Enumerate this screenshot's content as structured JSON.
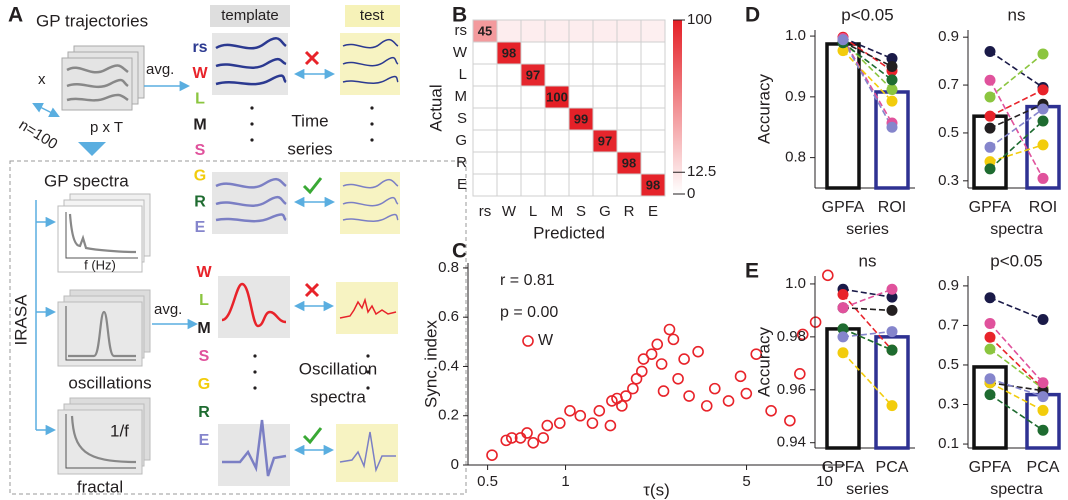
{
  "panel_labels": [
    "A",
    "B",
    "C",
    "D",
    "E"
  ],
  "diagram": {
    "gp_trajectories": "GP trajectories",
    "x": "x",
    "n": "n=100",
    "pxT": "p x T",
    "avg_top": "avg.",
    "template": "template",
    "test": "test",
    "labels_top": [
      "rs",
      "W",
      "L",
      "M",
      "S",
      "G",
      "R",
      "E"
    ],
    "label_colors_top": [
      "#2b3990",
      "#e8232a",
      "#8bc53f",
      "#231f20",
      "#e0529c",
      "#f2cc0c",
      "#1e6b30",
      "#8585cc"
    ],
    "time_series": [
      "Time",
      "series"
    ],
    "gp_spectra": "GP spectra",
    "f_hz": "f (Hz)",
    "irasa": "IRASA",
    "oscillations": "oscillations",
    "one_over_f": "1/f",
    "fractal": "fractal",
    "avg_bottom": "avg.",
    "labels_bottom": [
      "W",
      "L",
      "M",
      "S",
      "G",
      "R",
      "E"
    ],
    "label_colors_bottom": [
      "#e8232a",
      "#8bc53f",
      "#231f20",
      "#e0529c",
      "#f2cc0c",
      "#1e6b30",
      "#8585cc"
    ],
    "oscillation_spectra": [
      "Oscillation",
      "spectra"
    ]
  },
  "chart_data": [
    {
      "type": "heatmap",
      "categories": [
        "rs",
        "W",
        "L",
        "M",
        "S",
        "G",
        "R",
        "E"
      ],
      "matrix": [
        [
          45,
          8,
          8,
          8,
          8,
          8,
          8,
          7
        ],
        [
          0,
          98,
          0,
          0,
          0,
          0,
          0,
          0
        ],
        [
          0,
          0,
          97,
          0,
          0,
          0,
          0,
          0
        ],
        [
          0,
          0,
          0,
          100,
          0,
          0,
          0,
          0
        ],
        [
          0,
          0,
          0,
          0,
          99,
          0,
          0,
          0
        ],
        [
          0,
          0,
          0,
          0,
          0,
          97,
          0,
          0
        ],
        [
          0,
          0,
          0,
          0,
          0,
          0,
          98,
          0
        ],
        [
          0,
          0,
          0,
          0,
          0,
          0,
          0,
          98
        ]
      ],
      "color": "#e41f26",
      "xlabel": "Predicted",
      "ylabel": "Actual",
      "colorbar_lim": [
        0,
        100
      ],
      "colorbar_ticks": [
        0,
        12.5,
        100
      ]
    },
    {
      "type": "scatter",
      "xlabel": "τ(s)",
      "ylabel": "Sync. index",
      "log_x": true,
      "annotations": [
        "r = 0.81",
        "p = 0.00"
      ],
      "xlim": [
        0.42,
        12
      ],
      "ylim": [
        0,
        0.82
      ],
      "xticks": [
        0.5,
        1,
        5,
        10
      ],
      "yticks": [
        0,
        0.2,
        0.4,
        0.6,
        0.8
      ],
      "series": [
        {
          "name": "W",
          "color": "#e8232a",
          "x": [
            0.52,
            0.59,
            0.62,
            0.67,
            0.71,
            0.75,
            0.82,
            0.85,
            0.95,
            1.04,
            1.14,
            1.27,
            1.35,
            1.49,
            1.51,
            1.58,
            1.65,
            1.71,
            1.82,
            1.88,
            1.97,
            2.0,
            2.15,
            2.26,
            2.35,
            2.39,
            2.52,
            2.61,
            2.72,
            2.87,
            3.0,
            3.25,
            3.51,
            3.77,
            4.26,
            4.74,
            4.99,
            5.45,
            6.22,
            7.35,
            8.03,
            8.24,
            9.24,
            10.3
          ],
          "values": [
            0.04,
            0.1,
            0.11,
            0.11,
            0.13,
            0.09,
            0.11,
            0.16,
            0.17,
            0.22,
            0.2,
            0.17,
            0.22,
            0.16,
            0.26,
            0.27,
            0.24,
            0.28,
            0.31,
            0.35,
            0.38,
            0.43,
            0.45,
            0.49,
            0.41,
            0.3,
            0.55,
            0.51,
            0.35,
            0.43,
            0.28,
            0.46,
            0.24,
            0.31,
            0.26,
            0.36,
            0.29,
            0.45,
            0.22,
            0.18,
            0.37,
            0.53,
            0.58,
            0.77
          ]
        }
      ]
    },
    {
      "type": "paired-bar",
      "title": "p<0.05",
      "categories": [
        "GPFA",
        "ROI"
      ],
      "xlabel": "series",
      "ylabel": "Accuracy",
      "values": [
        0.987,
        0.908
      ],
      "bar_colors": [
        "#111111",
        "#2e3192"
      ],
      "ylim": [
        0.75,
        1.01
      ],
      "yticks": [
        0.8,
        0.9,
        {
          "value": 1,
          "label": "1.0"
        }
      ],
      "series": [
        {
          "color": "#1a1a48",
          "values": [
            0.997,
            0.963
          ]
        },
        {
          "color": "#e8232a",
          "values": [
            0.998,
            0.943
          ]
        },
        {
          "color": "#8bc53f",
          "values": [
            0.992,
            0.912
          ]
        },
        {
          "color": "#231f20",
          "values": [
            0.99,
            0.95
          ]
        },
        {
          "color": "#e0529c",
          "values": [
            0.996,
            0.857
          ]
        },
        {
          "color": "#f2cc0c",
          "values": [
            0.976,
            0.893
          ]
        },
        {
          "color": "#1e6b30",
          "values": [
            0.989,
            0.928
          ]
        },
        {
          "color": "#8585cc",
          "values": [
            0.994,
            0.85
          ]
        }
      ]
    },
    {
      "type": "paired-bar",
      "title": "ns",
      "categories": [
        "GPFA",
        "ROI"
      ],
      "xlabel": "spectra",
      "values": [
        0.57,
        0.61
      ],
      "bar_colors": [
        "#111111",
        "#2e3192"
      ],
      "ylim": [
        0.27,
        0.93
      ],
      "yticks": [
        0.3,
        0.5,
        0.7,
        0.9
      ],
      "series": [
        {
          "color": "#1a1a48",
          "values": [
            0.84,
            0.69
          ]
        },
        {
          "color": "#e8232a",
          "values": [
            0.57,
            0.68
          ]
        },
        {
          "color": "#8bc53f",
          "values": [
            0.65,
            0.83
          ]
        },
        {
          "color": "#231f20",
          "values": [
            0.52,
            0.62
          ]
        },
        {
          "color": "#e0529c",
          "values": [
            0.72,
            0.31
          ]
        },
        {
          "color": "#f2cc0c",
          "values": [
            0.38,
            0.45
          ]
        },
        {
          "color": "#1e6b30",
          "values": [
            0.35,
            0.55
          ]
        },
        {
          "color": "#8585cc",
          "values": [
            0.44,
            0.6
          ]
        }
      ]
    },
    {
      "type": "paired-bar",
      "title": "ns",
      "categories": [
        "GPFA",
        "PCA"
      ],
      "xlabel": "series",
      "ylabel": "Accuracy",
      "values": [
        0.983,
        0.98
      ],
      "bar_colors": [
        "#111111",
        "#2e3192"
      ],
      "ylim": [
        0.938,
        1.003
      ],
      "yticks": [
        0.94,
        0.96,
        0.98,
        {
          "value": 1,
          "label": "1.0"
        }
      ],
      "series": [
        {
          "color": "#1a1a48",
          "values": [
            0.998,
            0.995
          ]
        },
        {
          "color": "#e8232a",
          "values": [
            0.996,
            0.975
          ]
        },
        {
          "color": "#8bc53f",
          "values": [
            0.983,
            0.975
          ]
        },
        {
          "color": "#231f20",
          "values": [
            0.991,
            0.99
          ]
        },
        {
          "color": "#e0529c",
          "values": [
            0.991,
            0.998
          ]
        },
        {
          "color": "#f2cc0c",
          "values": [
            0.974,
            0.954
          ]
        },
        {
          "color": "#1e6b30",
          "values": [
            0.983,
            0.975
          ]
        },
        {
          "color": "#8585cc",
          "values": [
            0.98,
            0.982
          ]
        }
      ]
    },
    {
      "type": "paired-bar",
      "title": "p<0.05",
      "categories": [
        "GPFA",
        "PCA"
      ],
      "xlabel": "spectra",
      "values": [
        0.49,
        0.35
      ],
      "bar_colors": [
        "#111111",
        "#2e3192"
      ],
      "ylim": [
        0.08,
        0.95
      ],
      "yticks": [
        0.1,
        0.3,
        0.5,
        0.7,
        0.9
      ],
      "series": [
        {
          "color": "#1a1a48",
          "values": [
            0.84,
            0.73
          ]
        },
        {
          "color": "#e8232a",
          "values": [
            0.64,
            0.38
          ]
        },
        {
          "color": "#8bc53f",
          "values": [
            0.58,
            0.38
          ]
        },
        {
          "color": "#231f20",
          "values": [
            0.41,
            0.37
          ]
        },
        {
          "color": "#e0529c",
          "values": [
            0.71,
            0.41
          ]
        },
        {
          "color": "#f2cc0c",
          "values": [
            0.41,
            0.27
          ]
        },
        {
          "color": "#1e6b30",
          "values": [
            0.35,
            0.17
          ]
        },
        {
          "color": "#8585cc",
          "values": [
            0.43,
            0.34
          ]
        }
      ]
    }
  ]
}
